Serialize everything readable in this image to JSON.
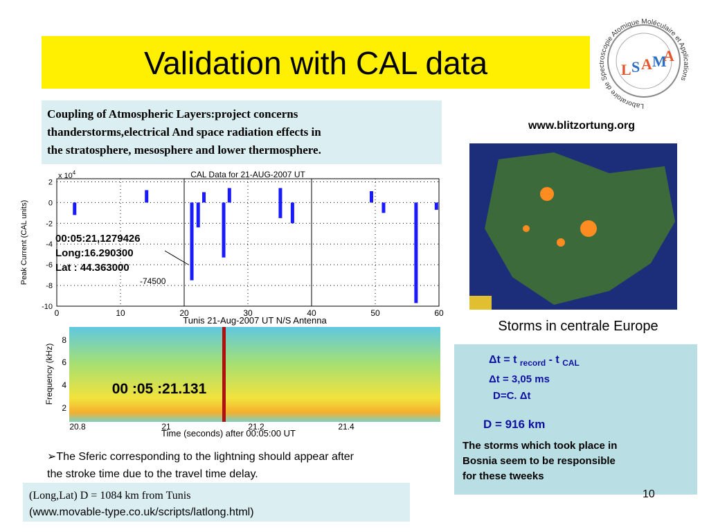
{
  "title": "Validation with CAL data",
  "logo": {
    "text": [
      "L",
      "S",
      "A",
      "M",
      "A"
    ],
    "ring": "Laboratoire de Spectroscopie Atomique Moléculaire et Applications"
  },
  "description": [
    "Coupling of Atmospheric Layers:project concerns",
    "thanderstorms,electrical And space radiation effects in",
    "the stratosphere, mesosphere and lower thermosphere."
  ],
  "map": {
    "source": "www.blitzortung.org",
    "caption": "Storms in centrale Europe"
  },
  "cal_plot": {
    "title": "CAL Data for 21-AUG-2007 UT",
    "multiplier": "x 10",
    "multiplier_exp": "4",
    "ylabel": "Peak Current (CAL units)",
    "xlim": [
      0,
      60
    ],
    "xticks": [
      0,
      10,
      20,
      30,
      40,
      50,
      60
    ],
    "ylim": [
      -10,
      2.3
    ],
    "yticks": [
      2,
      0,
      -2,
      -4,
      -6,
      -8,
      -10
    ],
    "bars": [
      {
        "x": 2.8,
        "from": 0,
        "to": -1.2
      },
      {
        "x": 14.1,
        "from": 1.2,
        "to": 0
      },
      {
        "x": 21.2,
        "from": 0,
        "to": -7.5
      },
      {
        "x": 22.2,
        "from": 0,
        "to": -2.4
      },
      {
        "x": 23.1,
        "from": 1,
        "to": 0
      },
      {
        "x": 26.2,
        "from": 0,
        "to": -5.3
      },
      {
        "x": 27.1,
        "from": 1.4,
        "to": 0
      },
      {
        "x": 35.1,
        "from": 1.4,
        "to": -1.5
      },
      {
        "x": 37.0,
        "from": 0,
        "to": -2
      },
      {
        "x": 49.4,
        "from": 1.1,
        "to": 0
      },
      {
        "x": 51.3,
        "from": 0,
        "to": -1
      },
      {
        "x": 56.4,
        "from": 0,
        "to": -9.7
      },
      {
        "x": 59.6,
        "from": 0,
        "to": -0.7
      }
    ],
    "annotation": [
      "00:05:21,1279426",
      "Long:16.290300",
      "Lat : 44.363000"
    ],
    "peak_label": "-74500"
  },
  "spectrogram": {
    "title": "Tunis 21-Aug-2007 UT   N/S Antenna",
    "ylabel": "Frequency (kHz)",
    "xlabel": "Time (seconds) after 00:05:00 UT",
    "yticks": [
      "8",
      "6",
      "4",
      "2"
    ],
    "xticks": [
      "20.8",
      "21",
      "21.2",
      "21.4"
    ],
    "marker": "00 :05 :21.131"
  },
  "result": {
    "formula": [
      "Δt = t ",
      "record",
      " - t ",
      "CAL"
    ],
    "delta": "Δt = 3,05 ms",
    "relation": "D=C. Δt",
    "distance": "D = 916 km",
    "note": [
      "The storms which took place in",
      "Bosnia seem to be responsible",
      "for these tweeks"
    ]
  },
  "sferic": [
    "➢The Sferic corresponding to the lightning should appear after",
    "the stroke time due to the travel time delay."
  ],
  "footer": {
    "line1": "(Long,Lat)  D = 1084 km from Tunis",
    "line2": "(www.movable-type.co.uk/scripts/latlong.html)"
  },
  "page_number": "10"
}
